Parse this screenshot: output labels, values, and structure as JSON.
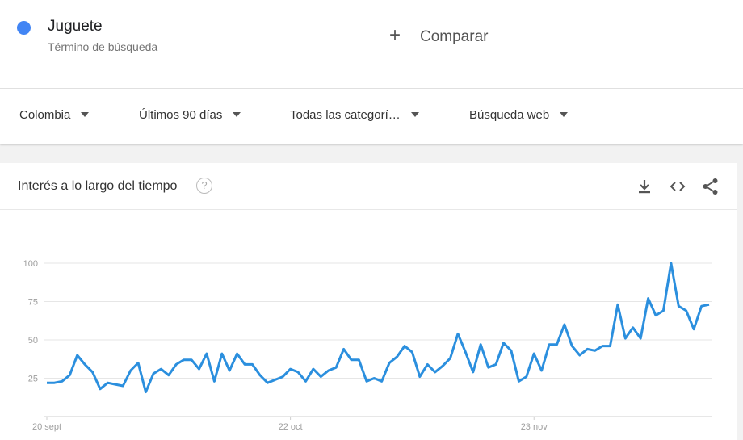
{
  "term": {
    "name": "Juguete",
    "type": "Término de búsqueda",
    "color": "#4285f4"
  },
  "compare": {
    "label": "Comparar"
  },
  "filters": {
    "region": "Colombia",
    "period": "Últimos 90 días",
    "category": "Todas las categorí…",
    "search_type": "Búsqueda web"
  },
  "card": {
    "title": "Interés a lo largo del tiempo",
    "help": "?",
    "icons": [
      "download-icon",
      "embed-icon",
      "share-icon"
    ]
  },
  "chart_data": {
    "type": "line",
    "title": "",
    "ylim": [
      0,
      100
    ],
    "yticks": [
      25,
      50,
      75,
      100
    ],
    "grid": true,
    "x_labels": [
      "20 sept",
      "22 oct",
      "23 nov"
    ],
    "x_label_indices": [
      0,
      32,
      64
    ],
    "series": [
      {
        "color": "#2b8fde",
        "values": [
          22,
          22,
          23,
          27,
          40,
          34,
          29,
          18,
          22,
          21,
          20,
          30,
          35,
          16,
          28,
          31,
          27,
          34,
          37,
          37,
          31,
          41,
          23,
          41,
          30,
          41,
          34,
          34,
          27,
          22,
          24,
          26,
          31,
          29,
          23,
          31,
          26,
          30,
          32,
          44,
          37,
          37,
          23,
          25,
          23,
          35,
          39,
          46,
          42,
          26,
          34,
          29,
          33,
          38,
          54,
          42,
          29,
          47,
          32,
          34,
          48,
          43,
          23,
          26,
          41,
          30,
          47,
          47,
          60,
          46,
          40,
          44,
          43,
          46,
          46,
          73,
          51,
          58,
          51,
          77,
          66,
          69,
          100,
          72,
          69,
          57,
          72,
          73
        ]
      }
    ]
  }
}
